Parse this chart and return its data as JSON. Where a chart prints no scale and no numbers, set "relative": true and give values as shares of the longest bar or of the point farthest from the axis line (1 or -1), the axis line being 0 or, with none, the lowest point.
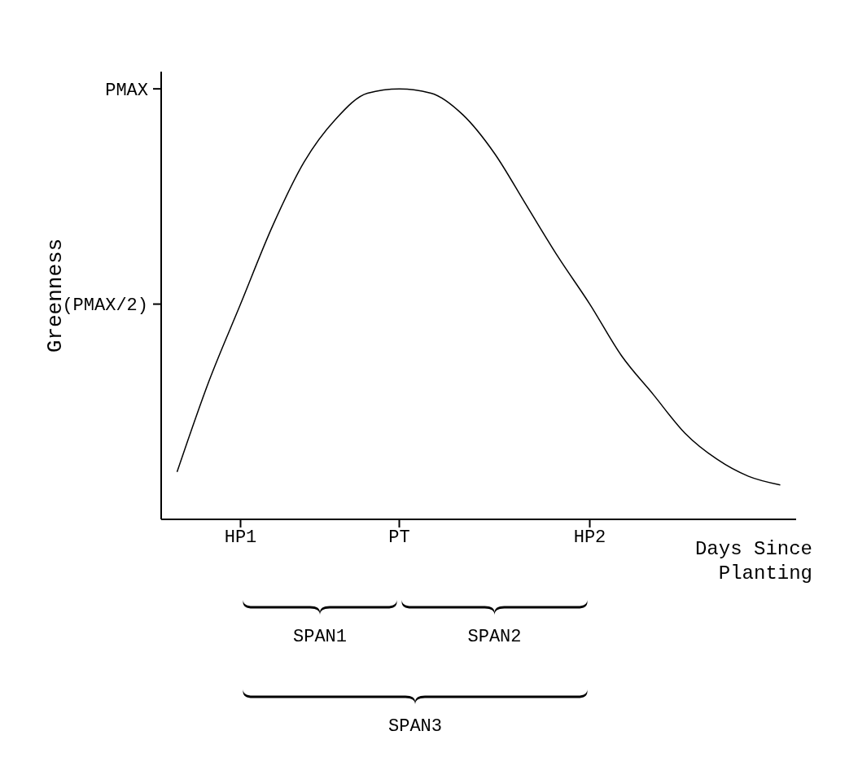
{
  "chart_data": {
    "type": "line",
    "ylabel": "Greenness",
    "xlabel": "Days Since Planting",
    "color": "#000000",
    "relative": true,
    "categories": [
      null,
      null,
      "HP1",
      null,
      null,
      null,
      null,
      "PT",
      null,
      null,
      null,
      null,
      null,
      "HP2",
      null,
      null,
      null,
      null,
      null,
      null
    ],
    "values": [
      0.11,
      0.32,
      0.5,
      0.68,
      0.83,
      0.93,
      0.99,
      1.0,
      0.99,
      0.94,
      0.85,
      0.73,
      0.61,
      0.5,
      0.38,
      0.29,
      0.2,
      0.14,
      0.1,
      0.08
    ],
    "grid": false,
    "marker": "none",
    "line_style": "solid",
    "annotations": [
      "PMAX",
      "(PMAX/2)",
      "SPAN1",
      "SPAN2",
      "SPAN3"
    ]
  }
}
